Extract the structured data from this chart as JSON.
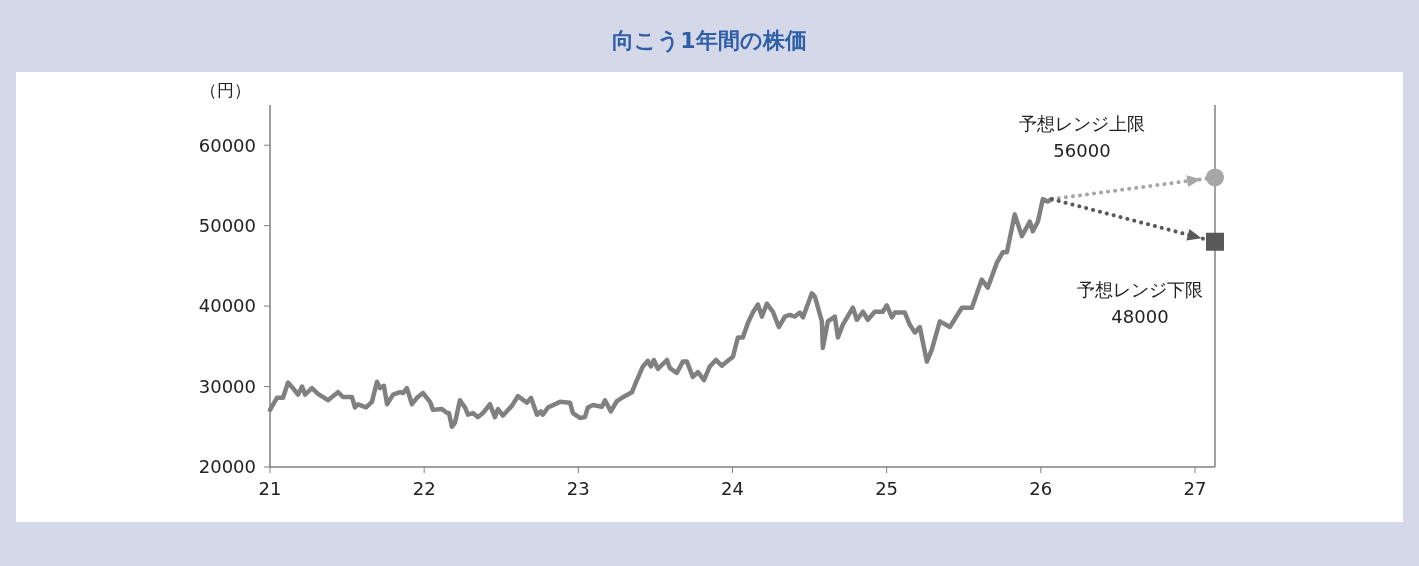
{
  "chart_data": {
    "type": "line",
    "title": "向こう1年間の株価",
    "ylabel": "（円）",
    "xlim": [
      21,
      27.13
    ],
    "xticks": [
      21,
      22,
      23,
      24,
      25,
      26,
      27
    ],
    "ylim": [
      20000,
      65000
    ],
    "yticks": [
      20000,
      30000,
      40000,
      50000,
      60000
    ],
    "grid": false,
    "annotations": [
      "予想レンジ上限\n56000",
      "予想レンジ下限\n48000"
    ],
    "series": [
      {
        "color": "#808080",
        "line_style": "solid",
        "x": [
          21.0,
          21.045,
          21.084,
          21.117,
          21.149,
          21.182,
          21.208,
          21.227,
          21.272,
          21.311,
          21.376,
          21.441,
          21.473,
          21.532,
          21.551,
          21.571,
          21.597,
          21.623,
          21.661,
          21.694,
          21.713,
          21.739,
          21.759,
          21.798,
          21.843,
          21.863,
          21.888,
          21.921,
          21.953,
          21.992,
          22.038,
          22.057,
          22.115,
          22.148,
          22.161,
          22.18,
          22.2,
          22.232,
          22.265,
          22.284,
          22.316,
          22.349,
          22.381,
          22.427,
          22.459,
          22.479,
          22.511,
          22.569,
          22.608,
          22.667,
          22.693,
          22.732,
          22.757,
          22.77,
          22.803,
          22.881,
          22.946,
          22.965,
          23.01,
          23.043,
          23.062,
          23.095,
          23.153,
          23.173,
          23.211,
          23.25,
          23.283,
          23.348,
          23.38,
          23.419,
          23.451,
          23.471,
          23.49,
          23.516,
          23.575,
          23.594,
          23.639,
          23.678,
          23.704,
          23.743,
          23.776,
          23.815,
          23.853,
          23.892,
          23.931,
          23.97,
          24.003,
          24.035,
          24.067,
          24.1,
          24.132,
          24.165,
          24.191,
          24.223,
          24.262,
          24.301,
          24.34,
          24.372,
          24.405,
          24.437,
          24.457,
          24.515,
          24.534,
          24.58,
          24.586,
          24.619,
          24.664,
          24.684,
          24.716,
          24.781,
          24.807,
          24.846,
          24.878,
          24.923,
          24.975,
          25.001,
          25.034,
          25.053,
          25.118,
          25.15,
          25.183,
          25.215,
          25.261,
          25.293,
          25.345,
          25.41,
          25.488,
          25.553,
          25.617,
          25.656,
          25.715,
          25.754,
          25.78,
          25.831,
          25.877,
          25.929,
          25.948,
          25.981,
          26.013,
          26.045,
          26.071
        ],
        "values": [
          27100,
          28600,
          28600,
          30500,
          29800,
          29000,
          30000,
          29000,
          29800,
          29100,
          28300,
          29300,
          28700,
          28700,
          27400,
          27800,
          27600,
          27400,
          28100,
          30600,
          29800,
          30100,
          27800,
          29000,
          29300,
          29200,
          29800,
          27800,
          28600,
          29200,
          28100,
          27100,
          27200,
          26700,
          26700,
          25000,
          25500,
          28300,
          27400,
          26500,
          26700,
          26200,
          26700,
          27800,
          26200,
          27200,
          26400,
          27600,
          28800,
          28000,
          28600,
          26500,
          26900,
          26500,
          27400,
          28100,
          28000,
          26700,
          26100,
          26200,
          27400,
          27700,
          27500,
          28300,
          26900,
          28200,
          28600,
          29300,
          30800,
          32500,
          33200,
          32500,
          33300,
          32200,
          33300,
          32300,
          31700,
          33100,
          33100,
          31200,
          31800,
          30800,
          32500,
          33300,
          32600,
          33200,
          33700,
          36100,
          36100,
          37900,
          39200,
          40200,
          38700,
          40300,
          39300,
          37400,
          38700,
          38900,
          38700,
          39200,
          38600,
          41600,
          41200,
          38100,
          34800,
          38100,
          38700,
          36100,
          37700,
          39800,
          38300,
          39300,
          38300,
          39300,
          39300,
          40100,
          38600,
          39200,
          39200,
          37700,
          36700,
          37400,
          33100,
          34600,
          38100,
          37400,
          39800,
          39800,
          43300,
          42300,
          45400,
          46700,
          46700,
          51400,
          48700,
          50500,
          49300,
          50500,
          53300,
          53000,
          53300
        ]
      },
      {
        "type": "line",
        "color": "#a6a6a6",
        "line_style": "dotted",
        "x": [
          26.071,
          27.13
        ],
        "values": [
          53300,
          56000
        ]
      },
      {
        "type": "line",
        "color": "#595959",
        "line_style": "dotted",
        "x": [
          26.071,
          27.13
        ],
        "values": [
          53300,
          48000
        ]
      },
      {
        "type": "scatter",
        "color": "#a6a6a6",
        "marker": "circle",
        "x": [
          27.13
        ],
        "values": [
          56000
        ]
      },
      {
        "type": "scatter",
        "color": "#595959",
        "marker": "square",
        "x": [
          27.13
        ],
        "values": [
          48000
        ]
      }
    ]
  }
}
